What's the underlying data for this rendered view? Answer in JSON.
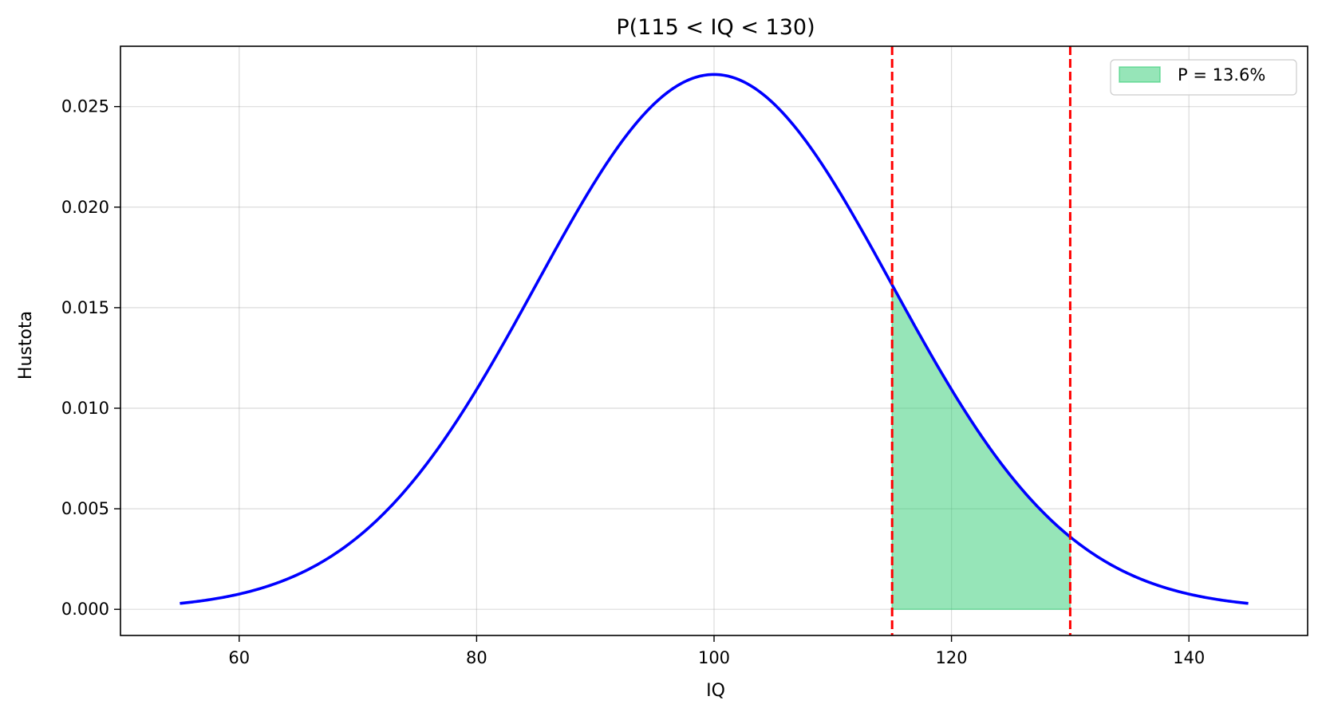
{
  "chart_data": {
    "type": "line",
    "title": "P(115 < IQ < 130)",
    "xlabel": "IQ",
    "ylabel": "Hustota",
    "xlim": [
      50,
      150
    ],
    "ylim": [
      -0.0013,
      0.028
    ],
    "xticks": [
      60,
      80,
      100,
      120,
      140
    ],
    "yticks": [
      0.0,
      0.005,
      0.01,
      0.015,
      0.02,
      0.025
    ],
    "ytick_format_decimals": 3,
    "grid": true,
    "legend_position": "top-right",
    "series": [
      {
        "kind": "normal-pdf",
        "mean": 100,
        "sd": 15,
        "x_range": [
          55,
          145
        ],
        "color": "#0000ff"
      }
    ],
    "shaded_region": {
      "x_range": [
        115,
        130
      ],
      "color": "#2ecc71",
      "label": "P = 13.6%"
    },
    "vlines": [
      {
        "x": 115,
        "color": "#ff0000",
        "style": "dashed"
      },
      {
        "x": 130,
        "color": "#ff0000",
        "style": "dashed"
      }
    ]
  }
}
